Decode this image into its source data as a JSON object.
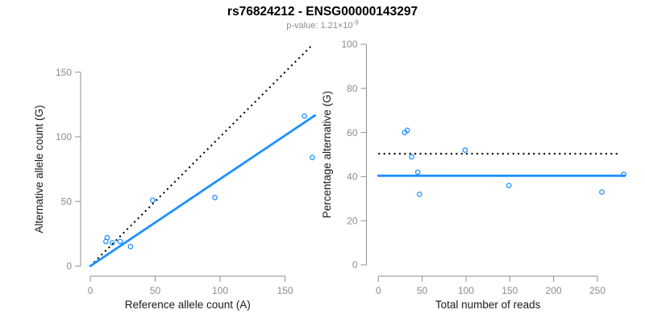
{
  "figure_title": "rs76824212 - ENSG00000143297",
  "p_value": {
    "label": "p-value:",
    "mantissa": "1.21",
    "multiplier": "×10",
    "exponent": "-9"
  },
  "colors": {
    "accent_blue": "#1E90FF",
    "dotted_black": "#000000",
    "axis_gray": "#8f8f8f",
    "tick_label_gray": "#8c8c8c",
    "axis_title_dark": "#1a1a1a",
    "subtitle_gray": "#8c8c8c"
  },
  "chart_data": [
    {
      "id": "allele-counts",
      "type": "scatter",
      "xlabel": "Reference allele count (A)",
      "ylabel": "Alternative allele count (G)",
      "xticks": [
        0,
        50,
        100,
        150
      ],
      "yticks": [
        0,
        50,
        100,
        150
      ],
      "xlim": [
        0,
        173
      ],
      "ylim": [
        0,
        170
      ],
      "grid": false,
      "legend": false,
      "points": [
        [
          12,
          19
        ],
        [
          13,
          22
        ],
        [
          17,
          18
        ],
        [
          23,
          19
        ],
        [
          31,
          15
        ],
        [
          48,
          51
        ],
        [
          96,
          53
        ],
        [
          165,
          116
        ],
        [
          171,
          84
        ]
      ],
      "lines": [
        {
          "name": "identity-line",
          "style": "dotted",
          "color_key": "dotted_black",
          "x": [
            0,
            170
          ],
          "y": [
            0,
            170
          ]
        },
        {
          "name": "regression-line",
          "style": "solid",
          "color_key": "accent_blue",
          "x": [
            0,
            173
          ],
          "y": [
            0,
            116.5
          ]
        }
      ]
    },
    {
      "id": "percentage-vs-reads",
      "type": "scatter",
      "xlabel": "Total number of reads",
      "ylabel": "Percentage alternative (G)",
      "xticks": [
        0,
        50,
        100,
        150,
        200,
        250
      ],
      "yticks": [
        0,
        20,
        40,
        60,
        80,
        100
      ],
      "xlim": [
        0,
        281
      ],
      "ylim": [
        0,
        100
      ],
      "grid": false,
      "legend": false,
      "points": [
        [
          30,
          60
        ],
        [
          33,
          61
        ],
        [
          38,
          49
        ],
        [
          45,
          42
        ],
        [
          47,
          32
        ],
        [
          99,
          52
        ],
        [
          149,
          36
        ],
        [
          255,
          33
        ],
        [
          280,
          41
        ]
      ],
      "lines": [
        {
          "name": "expected-percentage-line",
          "style": "dotted",
          "color_key": "dotted_black",
          "x": [
            0,
            274
          ],
          "y": [
            50.4,
            50.4
          ]
        },
        {
          "name": "mean-percentage-line",
          "style": "solid",
          "color_key": "accent_blue",
          "x": [
            0,
            281
          ],
          "y": [
            40.4,
            40.4
          ]
        }
      ]
    }
  ]
}
